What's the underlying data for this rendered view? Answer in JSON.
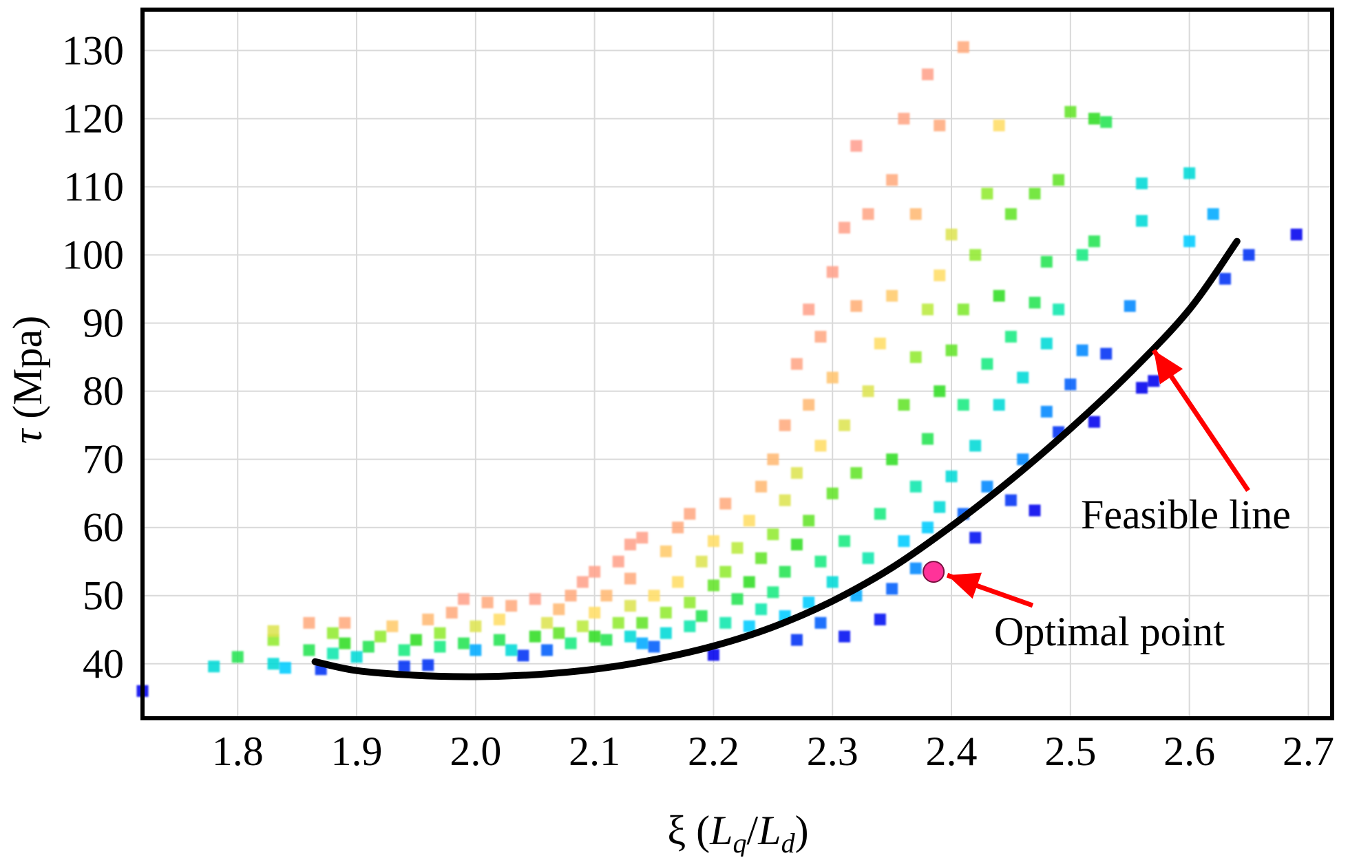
{
  "chart_data": {
    "type": "scatter",
    "title": "",
    "xlabel": {
      "prefix": "ξ (",
      "a": "L",
      "a_sub": "q",
      "slash": "/",
      "b": "L",
      "b_sub": "d",
      "suffix": ")"
    },
    "ylabel": {
      "symbol": "τ",
      "unit": " (Mpa)"
    },
    "xlim": [
      1.72,
      2.72
    ],
    "ylim": [
      32,
      136
    ],
    "x_ticks": [
      1.8,
      1.9,
      2.0,
      2.1,
      2.2,
      2.3,
      2.4,
      2.5,
      2.6,
      2.7
    ],
    "x_tick_labels": [
      "1.8",
      "1.9",
      "2.0",
      "2.1",
      "2.2",
      "2.3",
      "2.4",
      "2.5",
      "2.6",
      "2.7"
    ],
    "y_ticks": [
      40,
      50,
      60,
      70,
      80,
      90,
      100,
      110,
      120,
      130
    ],
    "y_tick_labels": [
      "40",
      "50",
      "60",
      "70",
      "80",
      "90",
      "100",
      "110",
      "120",
      "130"
    ],
    "grid": true,
    "colormap": {
      "description": "point color encodes distance from feasible line (blue = near, red = far)",
      "stops": [
        "#0000ee",
        "#0077ff",
        "#00ccff",
        "#11ee99",
        "#33dd22",
        "#aaee33",
        "#ffdd66",
        "#ffb077",
        "#ff9999"
      ]
    },
    "points": [
      [
        1.72,
        36.0,
        0.0
      ],
      [
        1.78,
        39.6,
        0.3
      ],
      [
        1.8,
        41.0,
        0.45
      ],
      [
        1.83,
        40.0,
        0.3
      ],
      [
        1.84,
        39.4,
        0.25
      ],
      [
        1.83,
        43.5,
        0.6
      ],
      [
        1.83,
        44.8,
        0.7
      ],
      [
        1.86,
        42.0,
        0.45
      ],
      [
        1.86,
        46.0,
        0.9
      ],
      [
        1.87,
        39.2,
        0.05
      ],
      [
        1.88,
        41.5,
        0.35
      ],
      [
        1.88,
        44.5,
        0.6
      ],
      [
        1.89,
        43.0,
        0.5
      ],
      [
        1.89,
        46.0,
        0.9
      ],
      [
        1.9,
        41.0,
        0.3
      ],
      [
        1.91,
        42.5,
        0.45
      ],
      [
        1.92,
        44.0,
        0.6
      ],
      [
        1.93,
        45.5,
        0.8
      ],
      [
        1.94,
        39.6,
        0.05
      ],
      [
        1.94,
        42.0,
        0.4
      ],
      [
        1.95,
        43.5,
        0.5
      ],
      [
        1.96,
        39.8,
        0.05
      ],
      [
        1.96,
        46.5,
        0.85
      ],
      [
        1.97,
        42.5,
        0.4
      ],
      [
        1.97,
        44.5,
        0.6
      ],
      [
        1.98,
        47.5,
        0.9
      ],
      [
        1.99,
        43.0,
        0.45
      ],
      [
        1.99,
        49.5,
        0.95
      ],
      [
        2.0,
        42.0,
        0.2
      ],
      [
        2.0,
        45.5,
        0.7
      ],
      [
        2.01,
        49.0,
        0.9
      ],
      [
        2.02,
        43.5,
        0.45
      ],
      [
        2.02,
        46.5,
        0.75
      ],
      [
        2.03,
        42.0,
        0.3
      ],
      [
        2.03,
        48.5,
        0.9
      ],
      [
        2.04,
        41.2,
        0.05
      ],
      [
        2.05,
        44.0,
        0.5
      ],
      [
        2.05,
        49.5,
        0.95
      ],
      [
        2.06,
        42.0,
        0.1
      ],
      [
        2.06,
        46.0,
        0.7
      ],
      [
        2.07,
        44.5,
        0.55
      ],
      [
        2.07,
        48.0,
        0.85
      ],
      [
        2.08,
        43.0,
        0.4
      ],
      [
        2.08,
        50.0,
        0.9
      ],
      [
        2.09,
        45.5,
        0.65
      ],
      [
        2.09,
        52.0,
        0.95
      ],
      [
        2.1,
        44.0,
        0.5
      ],
      [
        2.1,
        47.5,
        0.75
      ],
      [
        2.1,
        53.5,
        0.95
      ],
      [
        2.11,
        43.5,
        0.45
      ],
      [
        2.11,
        50.0,
        0.85
      ],
      [
        2.12,
        46.0,
        0.6
      ],
      [
        2.12,
        55.0,
        0.95
      ],
      [
        2.13,
        44.0,
        0.3
      ],
      [
        2.13,
        48.5,
        0.7
      ],
      [
        2.13,
        52.5,
        0.9
      ],
      [
        2.13,
        57.5,
        0.95
      ],
      [
        2.14,
        43.0,
        0.2
      ],
      [
        2.14,
        46.0,
        0.55
      ],
      [
        2.14,
        58.5,
        0.95
      ],
      [
        2.15,
        42.5,
        0.1
      ],
      [
        2.15,
        50.0,
        0.75
      ],
      [
        2.16,
        44.5,
        0.3
      ],
      [
        2.16,
        47.5,
        0.6
      ],
      [
        2.16,
        56.5,
        0.8
      ],
      [
        2.17,
        52.0,
        0.75
      ],
      [
        2.17,
        60.0,
        0.9
      ],
      [
        2.18,
        45.5,
        0.35
      ],
      [
        2.18,
        49.0,
        0.6
      ],
      [
        2.18,
        62.0,
        0.92
      ],
      [
        2.19,
        47.0,
        0.45
      ],
      [
        2.19,
        55.0,
        0.7
      ],
      [
        2.2,
        41.3,
        0.0
      ],
      [
        2.2,
        51.5,
        0.55
      ],
      [
        2.2,
        58.0,
        0.75
      ],
      [
        2.21,
        46.0,
        0.35
      ],
      [
        2.21,
        53.5,
        0.6
      ],
      [
        2.21,
        63.5,
        0.9
      ],
      [
        2.22,
        49.5,
        0.45
      ],
      [
        2.22,
        57.0,
        0.65
      ],
      [
        2.23,
        45.5,
        0.25
      ],
      [
        2.23,
        52.0,
        0.5
      ],
      [
        2.23,
        61.0,
        0.75
      ],
      [
        2.24,
        48.0,
        0.35
      ],
      [
        2.24,
        55.5,
        0.55
      ],
      [
        2.24,
        66.0,
        0.85
      ],
      [
        2.25,
        50.5,
        0.4
      ],
      [
        2.25,
        59.0,
        0.6
      ],
      [
        2.25,
        70.0,
        0.85
      ],
      [
        2.26,
        47.0,
        0.25
      ],
      [
        2.26,
        53.5,
        0.45
      ],
      [
        2.26,
        64.0,
        0.7
      ],
      [
        2.26,
        75.0,
        0.9
      ],
      [
        2.27,
        43.5,
        0.05
      ],
      [
        2.27,
        57.5,
        0.5
      ],
      [
        2.27,
        68.0,
        0.7
      ],
      [
        2.27,
        84.0,
        0.93
      ],
      [
        2.28,
        49.0,
        0.25
      ],
      [
        2.28,
        61.0,
        0.55
      ],
      [
        2.28,
        78.0,
        0.85
      ],
      [
        2.28,
        92.0,
        0.95
      ],
      [
        2.29,
        46.0,
        0.1
      ],
      [
        2.29,
        55.0,
        0.4
      ],
      [
        2.29,
        72.0,
        0.75
      ],
      [
        2.29,
        88.0,
        0.92
      ],
      [
        2.3,
        52.0,
        0.3
      ],
      [
        2.3,
        65.0,
        0.55
      ],
      [
        2.3,
        82.0,
        0.82
      ],
      [
        2.3,
        97.5,
        0.95
      ],
      [
        2.31,
        44.0,
        0.02
      ],
      [
        2.31,
        58.0,
        0.4
      ],
      [
        2.31,
        75.0,
        0.7
      ],
      [
        2.31,
        104.0,
        0.95
      ],
      [
        2.32,
        50.0,
        0.2
      ],
      [
        2.32,
        68.0,
        0.55
      ],
      [
        2.32,
        92.5,
        0.88
      ],
      [
        2.32,
        116.0,
        0.97
      ],
      [
        2.33,
        55.5,
        0.35
      ],
      [
        2.33,
        80.0,
        0.7
      ],
      [
        2.33,
        106.0,
        0.93
      ],
      [
        2.34,
        46.5,
        0.02
      ],
      [
        2.34,
        62.0,
        0.4
      ],
      [
        2.34,
        87.0,
        0.75
      ],
      [
        2.35,
        51.0,
        0.1
      ],
      [
        2.35,
        70.0,
        0.5
      ],
      [
        2.35,
        94.0,
        0.8
      ],
      [
        2.35,
        111.0,
        0.9
      ],
      [
        2.36,
        58.0,
        0.25
      ],
      [
        2.36,
        78.0,
        0.55
      ],
      [
        2.36,
        120.0,
        0.93
      ],
      [
        2.37,
        54.0,
        0.15
      ],
      [
        2.37,
        66.0,
        0.35
      ],
      [
        2.37,
        85.0,
        0.6
      ],
      [
        2.37,
        106.0,
        0.85
      ],
      [
        2.38,
        60.0,
        0.25
      ],
      [
        2.38,
        73.0,
        0.45
      ],
      [
        2.38,
        92.0,
        0.65
      ],
      [
        2.38,
        126.5,
        0.95
      ],
      [
        2.39,
        63.0,
        0.3
      ],
      [
        2.39,
        80.0,
        0.5
      ],
      [
        2.39,
        97.0,
        0.75
      ],
      [
        2.39,
        119.0,
        0.9
      ],
      [
        2.4,
        67.5,
        0.3
      ],
      [
        2.4,
        86.0,
        0.55
      ],
      [
        2.4,
        103.0,
        0.7
      ],
      [
        2.41,
        62.0,
        0.1
      ],
      [
        2.41,
        78.0,
        0.4
      ],
      [
        2.41,
        92.0,
        0.58
      ],
      [
        2.41,
        130.5,
        0.9
      ],
      [
        2.42,
        58.5,
        0.02
      ],
      [
        2.42,
        72.0,
        0.3
      ],
      [
        2.42,
        100.0,
        0.6
      ],
      [
        2.43,
        66.0,
        0.15
      ],
      [
        2.43,
        84.0,
        0.4
      ],
      [
        2.43,
        109.0,
        0.6
      ],
      [
        2.44,
        78.0,
        0.3
      ],
      [
        2.44,
        94.0,
        0.5
      ],
      [
        2.44,
        119.0,
        0.75
      ],
      [
        2.45,
        64.0,
        0.05
      ],
      [
        2.45,
        88.0,
        0.4
      ],
      [
        2.45,
        106.0,
        0.55
      ],
      [
        2.46,
        70.0,
        0.15
      ],
      [
        2.46,
        82.0,
        0.3
      ],
      [
        2.47,
        62.5,
        0.0
      ],
      [
        2.47,
        93.0,
        0.45
      ],
      [
        2.47,
        109.0,
        0.55
      ],
      [
        2.48,
        77.0,
        0.15
      ],
      [
        2.48,
        87.0,
        0.3
      ],
      [
        2.48,
        99.0,
        0.45
      ],
      [
        2.49,
        74.0,
        0.05
      ],
      [
        2.49,
        92.0,
        0.35
      ],
      [
        2.49,
        111.0,
        0.55
      ],
      [
        2.5,
        81.0,
        0.1
      ],
      [
        2.5,
        121.0,
        0.55
      ],
      [
        2.51,
        86.0,
        0.15
      ],
      [
        2.51,
        100.0,
        0.4
      ],
      [
        2.52,
        75.5,
        0.0
      ],
      [
        2.52,
        102.0,
        0.45
      ],
      [
        2.52,
        120.0,
        0.5
      ],
      [
        2.53,
        85.5,
        0.05
      ],
      [
        2.53,
        119.5,
        0.45
      ],
      [
        2.55,
        92.5,
        0.15
      ],
      [
        2.56,
        80.5,
        0.0
      ],
      [
        2.56,
        110.5,
        0.3
      ],
      [
        2.56,
        105.0,
        0.3
      ],
      [
        2.57,
        81.5,
        0.0
      ],
      [
        2.6,
        102.0,
        0.25
      ],
      [
        2.6,
        112.0,
        0.3
      ],
      [
        2.62,
        106.0,
        0.2
      ],
      [
        2.63,
        96.5,
        0.05
      ],
      [
        2.65,
        100.0,
        0.05
      ],
      [
        2.69,
        103.0,
        0.0
      ]
    ],
    "feasible_line": {
      "x": [
        1.865,
        1.9,
        1.95,
        2.0,
        2.05,
        2.1,
        2.15,
        2.2,
        2.25,
        2.3,
        2.35,
        2.4,
        2.45,
        2.5,
        2.55,
        2.6,
        2.64
      ],
      "y": [
        40.3,
        39.0,
        38.3,
        38.1,
        38.4,
        39.2,
        40.6,
        42.6,
        45.4,
        49.2,
        54.1,
        60.2,
        67.0,
        74.5,
        82.7,
        92.0,
        102.0
      ]
    },
    "optimal_point": {
      "x": 2.385,
      "y": 53.5,
      "color": "#ff3399"
    },
    "annotations": [
      {
        "text": "Feasible line",
        "arrow_to": [
          2.57,
          86.0
        ],
        "arrow_color": "#ff0000"
      },
      {
        "text": "Optimal point",
        "arrow_to": [
          2.393,
          53.0
        ],
        "arrow_color": "#ff0000"
      }
    ]
  }
}
